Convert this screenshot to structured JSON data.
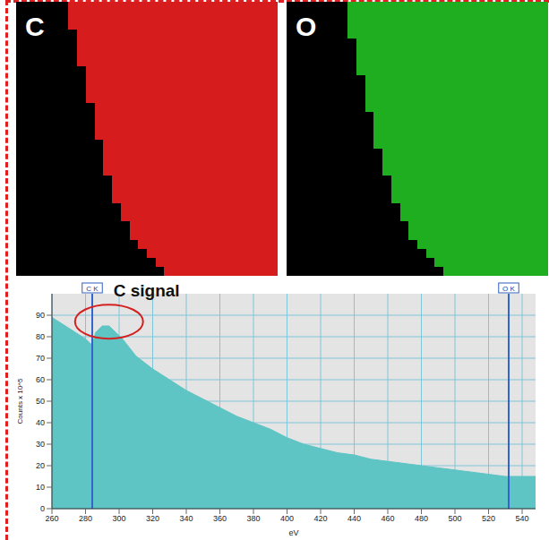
{
  "panels": [
    {
      "label": "C",
      "color": "#d61c1c",
      "columns": 30,
      "rows": 30,
      "edge_columns": [
        6,
        6,
        6,
        7,
        7,
        7,
        7,
        8,
        8,
        8,
        8,
        9,
        9,
        9,
        9,
        10,
        10,
        10,
        10,
        11,
        11,
        11,
        12,
        12,
        13,
        13,
        14,
        15,
        16,
        17
      ]
    },
    {
      "label": "O",
      "color": "#1fae1f",
      "columns": 30,
      "rows": 30,
      "edge_columns": [
        7,
        7,
        7,
        7,
        8,
        8,
        8,
        8,
        9,
        9,
        9,
        9,
        10,
        10,
        10,
        10,
        11,
        11,
        11,
        12,
        12,
        12,
        13,
        13,
        14,
        14,
        15,
        16,
        17,
        18
      ]
    }
  ],
  "chart_data": {
    "type": "area",
    "x": [
      260,
      270,
      280,
      284,
      286,
      290,
      294,
      298,
      302,
      306,
      310,
      320,
      330,
      340,
      350,
      360,
      370,
      380,
      390,
      400,
      410,
      420,
      430,
      440,
      450,
      460,
      470,
      480,
      490,
      500,
      510,
      520,
      530,
      540,
      548
    ],
    "values": [
      89,
      84,
      79,
      76,
      82,
      85,
      85,
      82,
      79,
      75,
      71,
      65,
      60,
      55,
      51,
      47,
      43,
      40,
      37,
      33,
      30,
      28,
      26,
      25,
      23,
      22,
      21,
      20,
      19,
      18,
      17,
      16,
      15,
      15,
      15
    ],
    "color": "#5ec4c4",
    "xlim": [
      260,
      548
    ],
    "xticks": [
      260,
      280,
      300,
      320,
      340,
      360,
      380,
      400,
      420,
      440,
      460,
      480,
      500,
      520,
      540
    ],
    "ylim": [
      0,
      100
    ],
    "yticks": [
      0,
      10,
      20,
      30,
      40,
      50,
      60,
      70,
      80,
      90
    ],
    "x_label": "eV",
    "y_label": "Counts x 10^5",
    "grid": true,
    "markers": [
      {
        "x": 284,
        "label": "C K"
      },
      {
        "x": 532,
        "label": "O K"
      }
    ],
    "annotations": [
      {
        "text": "C signal",
        "x": 294,
        "y": 87
      }
    ]
  }
}
